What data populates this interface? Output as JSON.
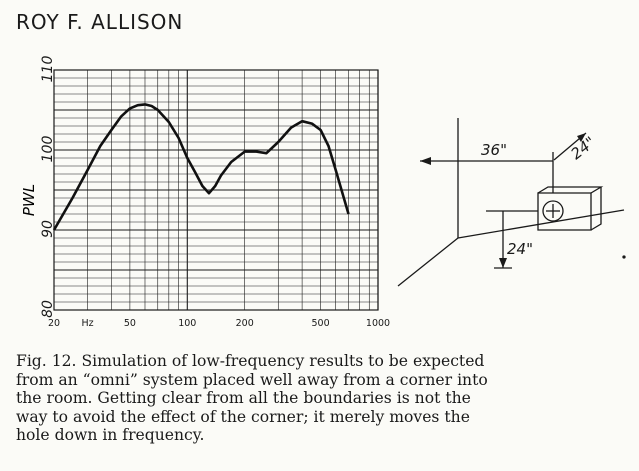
{
  "header": {
    "author": "ROY F. ALLISON"
  },
  "chart_data": {
    "type": "line",
    "ylabel": "PWL",
    "xlabel": "",
    "x_scale": "log",
    "xlim": [
      20,
      1000
    ],
    "ylim": [
      80,
      110
    ],
    "y_ticks": [
      {
        "value": 80,
        "label": "80"
      },
      {
        "value": 90,
        "label": "90"
      },
      {
        "value": 100,
        "label": "100"
      },
      {
        "value": 110,
        "label": "110"
      }
    ],
    "x_ticks": [
      {
        "value": 20,
        "label": "20"
      },
      {
        "value": 30,
        "label": "Hz"
      },
      {
        "value": 50,
        "label": "50"
      },
      {
        "value": 100,
        "label": "100"
      },
      {
        "value": 200,
        "label": "200"
      },
      {
        "value": 500,
        "label": "500"
      },
      {
        "value": 1000,
        "label": "1000"
      }
    ],
    "grid": true,
    "series": [
      {
        "x": [
          20,
          25,
          30,
          35,
          40,
          45,
          50,
          55,
          60,
          65,
          70,
          80,
          90,
          100,
          110,
          120,
          130,
          140,
          150,
          170,
          200,
          230,
          260,
          300,
          350,
          400,
          450,
          500,
          550,
          600,
          700
        ],
        "y": [
          90,
          94,
          97.5,
          100.5,
          102.5,
          104.2,
          105.2,
          105.6,
          105.7,
          105.5,
          105,
          103.5,
          101.5,
          99,
          97.2,
          95.5,
          94.6,
          95.5,
          96.8,
          98.5,
          99.8,
          99.8,
          99.6,
          101,
          102.8,
          103.6,
          103.3,
          102.5,
          100.5,
          97.5,
          92
        ]
      }
    ]
  },
  "diagram": {
    "dim_horizontal": "36\"",
    "dim_diagonal": "24\"",
    "dim_vertical": "24\""
  },
  "caption": {
    "lines": [
      "Fig. 12. Simulation of low-frequency results to be expected",
      "from an “omni” system placed well away from a corner into",
      "the room. Getting clear from all the boundaries is not the",
      "way to avoid the effect of the corner; it merely moves the",
      "hole down in frequency."
    ]
  }
}
